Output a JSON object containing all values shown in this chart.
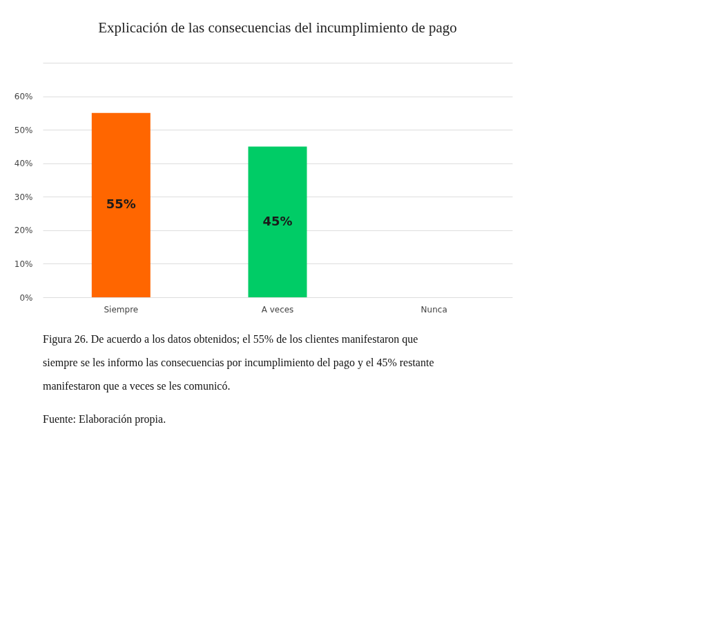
{
  "chart_data": {
    "type": "bar",
    "title": "Explicación de las consecuencias del incumplimiento de pago",
    "categories": [
      "Siempre",
      "A veces",
      "Nunca"
    ],
    "values": [
      55,
      45,
      0
    ],
    "colors": [
      "#ff6600",
      "#00cc66",
      "#3f72af"
    ],
    "value_labels": [
      "55%",
      "45%",
      null
    ],
    "ylim": [
      0,
      70
    ],
    "yticks": [
      {
        "value": 0,
        "label": "0%"
      },
      {
        "value": 10,
        "label": "10%"
      },
      {
        "value": 20,
        "label": "20%"
      },
      {
        "value": 30,
        "label": "30%"
      },
      {
        "value": 40,
        "label": "40%"
      },
      {
        "value": 50,
        "label": "50%"
      },
      {
        "value": 60,
        "label": "60%"
      },
      {
        "value": 70,
        "label": null
      }
    ],
    "grid": "y",
    "annotations": [
      "Figura 26. De acuerdo a los datos obtenidos; el 55% de los clientes manifestaron que siempre se les informo las consecuencias por incumplimiento del pago y el 45% restante manifestaron que a veces se les comunicó.",
      "Fuente: Elaboración propia."
    ]
  }
}
